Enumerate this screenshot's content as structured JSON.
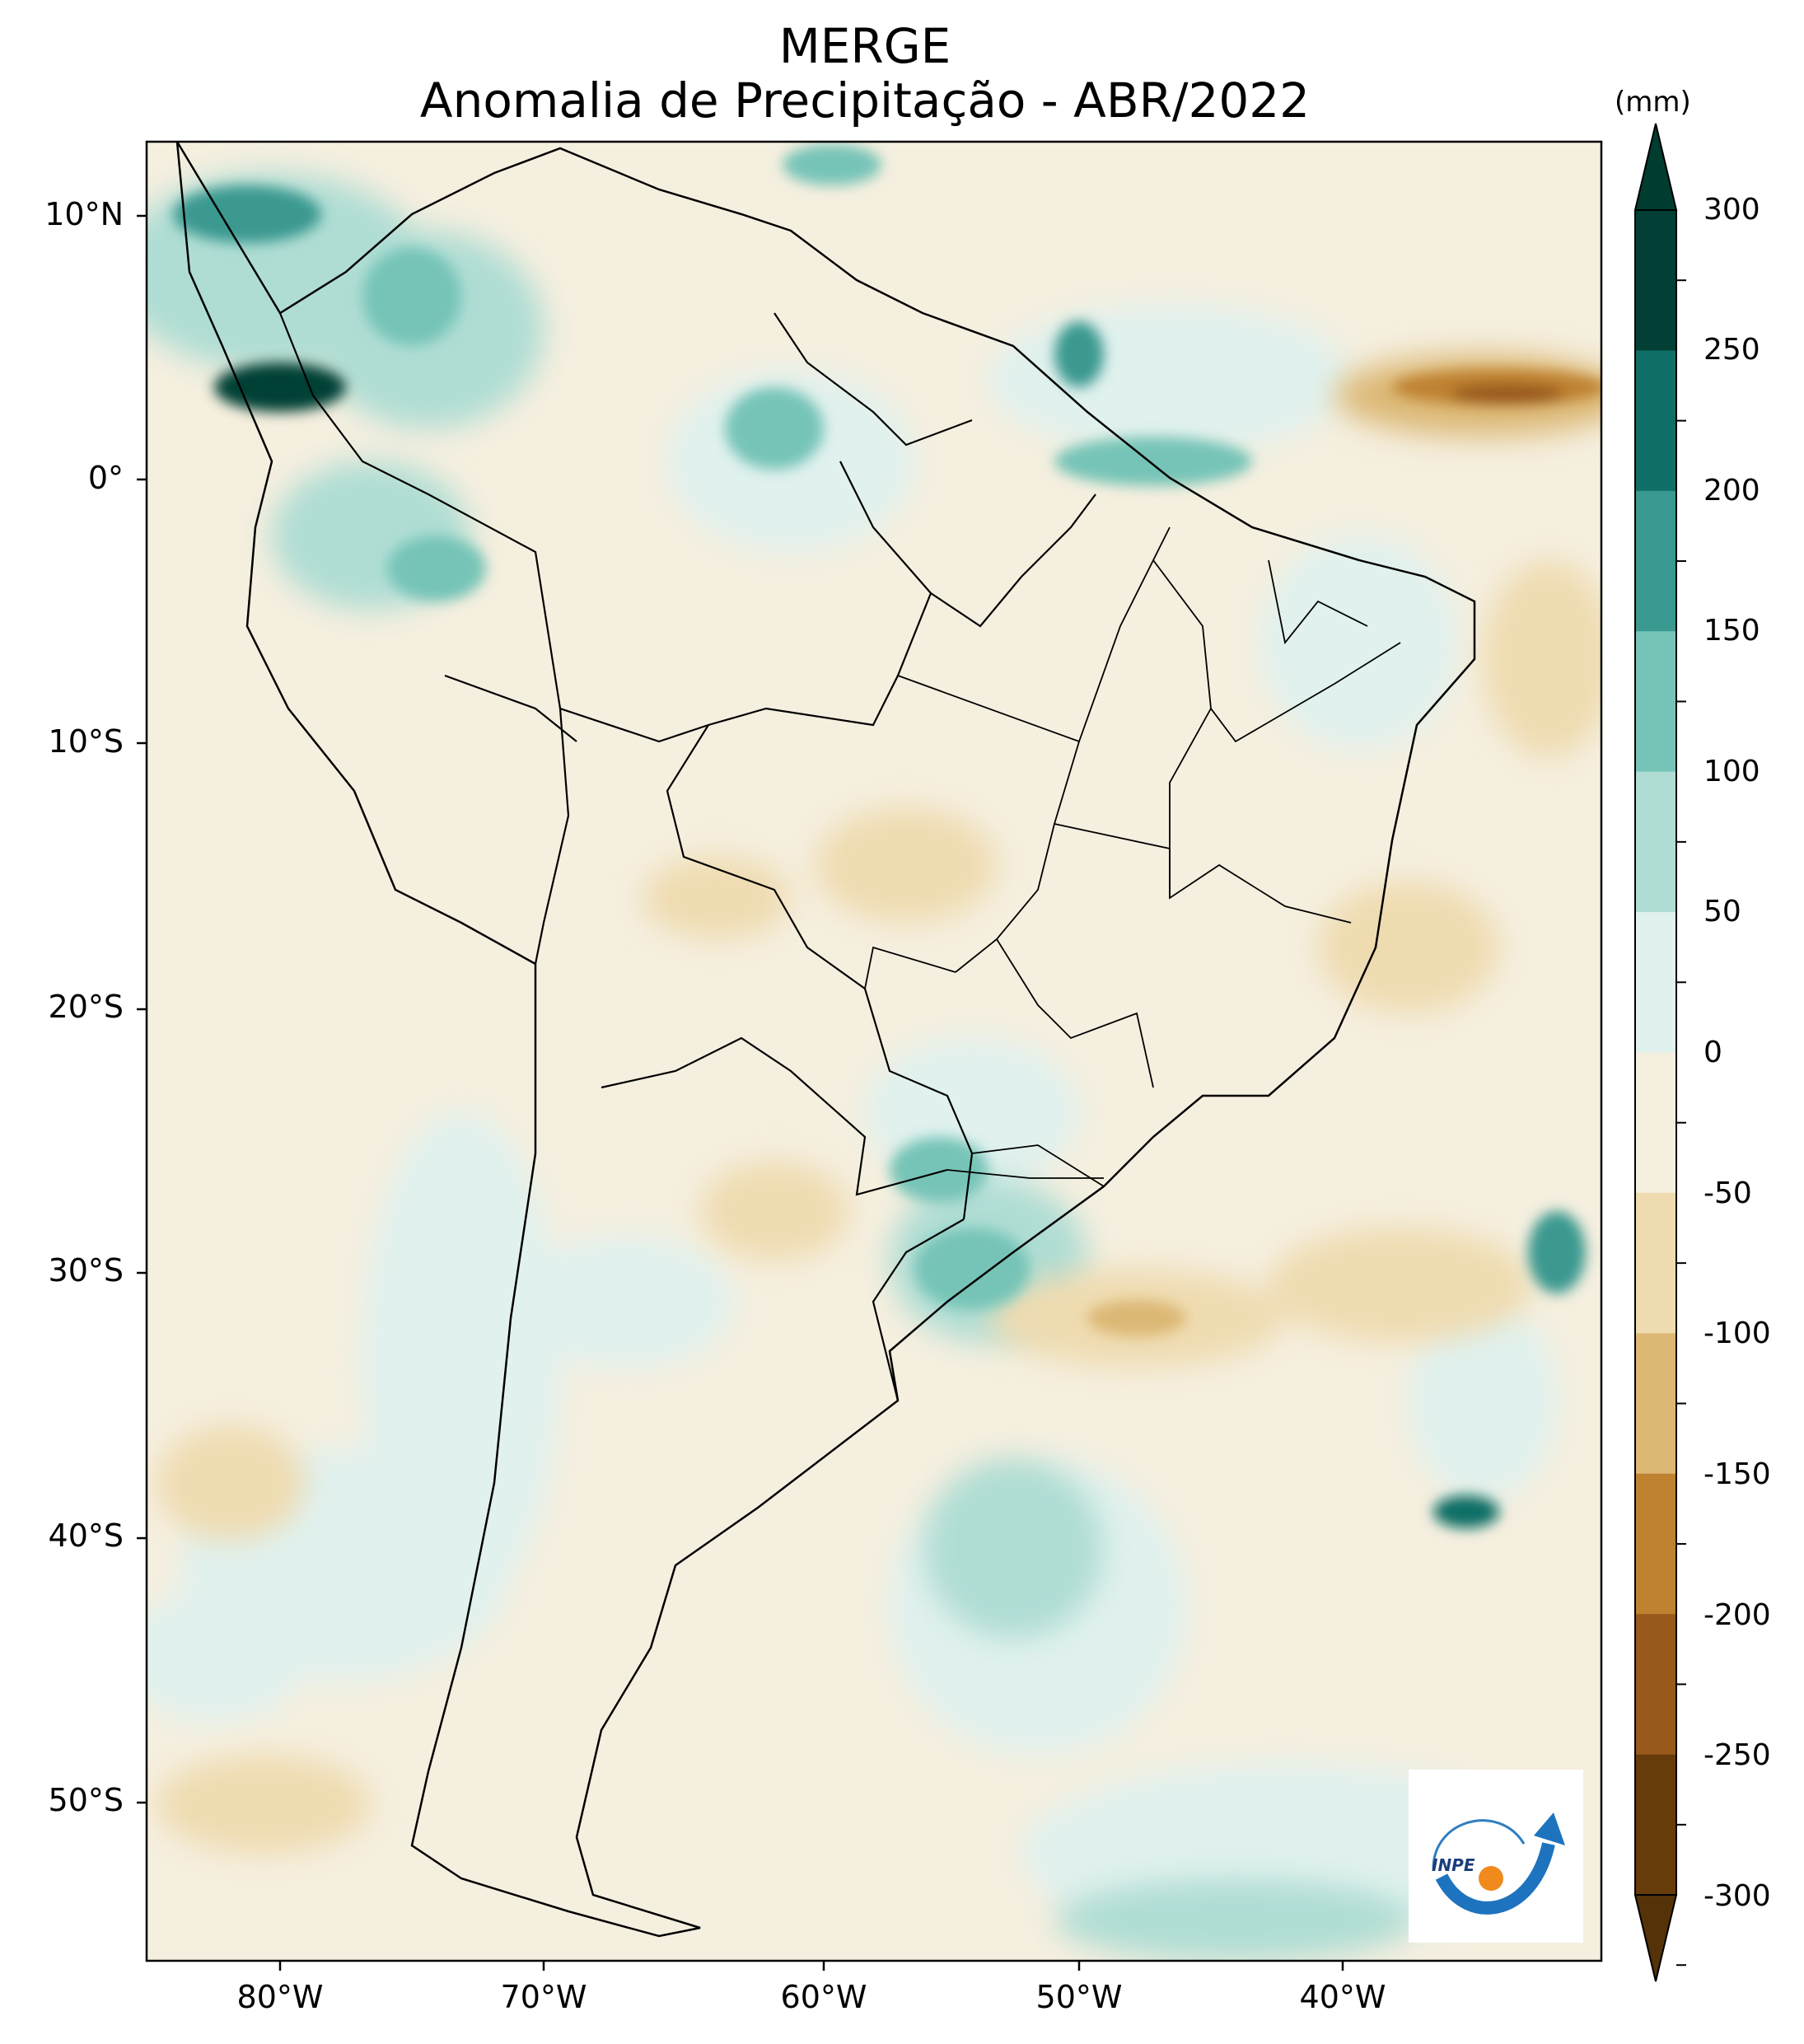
{
  "header": {
    "title": "MERGE",
    "subtitle": "Anomalia de Precipitação - ABR/2022"
  },
  "map": {
    "region": "South America",
    "variable": "Precipitation anomaly",
    "lat_labels": [
      "10°N",
      "0°",
      "10°S",
      "20°S",
      "30°S",
      "40°S",
      "50°S"
    ],
    "lon_labels": [
      "80°W",
      "70°W",
      "60°W",
      "50°W",
      "40°W"
    ],
    "lat_values": [
      10,
      0,
      -10,
      -20,
      -30,
      -40,
      -50
    ],
    "lon_values": [
      -80,
      -70,
      -60,
      -50,
      -40
    ],
    "lat_range": [
      -56,
      12
    ],
    "lon_range": [
      -85,
      -30
    ]
  },
  "colorbar": {
    "unit": "(mm)",
    "ticks": [
      "300",
      "250",
      "200",
      "150",
      "100",
      "50",
      "0",
      "-50",
      "-100",
      "-150",
      "-200",
      "-250",
      "-300"
    ],
    "tick_values": [
      300,
      250,
      200,
      150,
      100,
      50,
      0,
      -50,
      -100,
      -150,
      -200,
      -250,
      -300
    ],
    "colors": [
      "#023f34",
      "#0f6e66",
      "#3a9990",
      "#76c4b7",
      "#afddd4",
      "#e0f1ee",
      "#f5efdf",
      "#efdbb0",
      "#dcb874",
      "#bf8230",
      "#98591c",
      "#673c0b"
    ],
    "extend_top_color": "#013c30",
    "extend_bottom_color": "#553208"
  },
  "logo": {
    "text": "INPE"
  }
}
